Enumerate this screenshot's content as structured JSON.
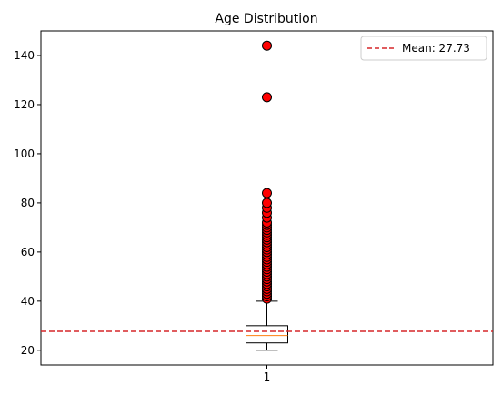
{
  "chart_data": {
    "type": "box",
    "title": "Age Distribution",
    "xlabel": "",
    "ylabel": "",
    "categories": [
      "1"
    ],
    "ylim": [
      14,
      150
    ],
    "yticks": [
      20,
      40,
      60,
      80,
      100,
      120,
      140
    ],
    "grid": false,
    "legend_position": "top-right",
    "box": {
      "whisker_low": 20,
      "q1": 23,
      "median": 26,
      "q3": 30,
      "whisker_high": 40
    },
    "outliers": [
      41,
      42,
      43,
      44,
      45,
      46,
      47,
      48,
      49,
      50,
      51,
      52,
      53,
      54,
      55,
      56,
      57,
      58,
      59,
      60,
      61,
      62,
      63,
      64,
      65,
      66,
      67,
      68,
      69,
      70,
      71,
      72,
      74,
      76,
      78,
      80,
      84,
      123,
      144
    ],
    "mean": {
      "value": 27.73,
      "legend_label": "Mean: 27.73",
      "color": "#d62728"
    },
    "colors": {
      "box": "#000000",
      "median": "#ff7f0e",
      "outlier_fill": "#ff0000",
      "outlier_edge": "#000000"
    }
  }
}
